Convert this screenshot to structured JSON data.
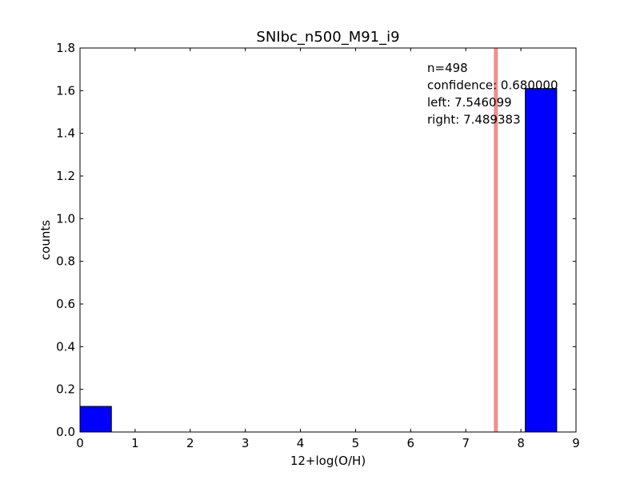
{
  "chart_data": {
    "type": "bar",
    "title": "SNIbc_n500_M91_i9",
    "xlabel": "12+log(O/H)",
    "ylabel": "counts",
    "xlim": [
      0,
      9
    ],
    "ylim": [
      0,
      1.8
    ],
    "xticks": [
      "0",
      "1",
      "2",
      "3",
      "4",
      "5",
      "6",
      "7",
      "8",
      "9"
    ],
    "yticks": [
      "0.0",
      "0.2",
      "0.4",
      "0.6",
      "0.8",
      "1.0",
      "1.2",
      "1.4",
      "1.6",
      "1.8"
    ],
    "bins": [
      {
        "x0": 0.0,
        "x1": 0.57,
        "value": 0.12
      },
      {
        "x0": 8.08,
        "x1": 8.65,
        "value": 1.61
      }
    ],
    "vline": {
      "x": 7.546,
      "color": "#f28e8e"
    },
    "bar_color": "#0000ff",
    "grid": false,
    "annotations": [
      "n=498",
      "confidence: 0.680000",
      "left: 7.546099",
      "right: 7.489383"
    ]
  }
}
